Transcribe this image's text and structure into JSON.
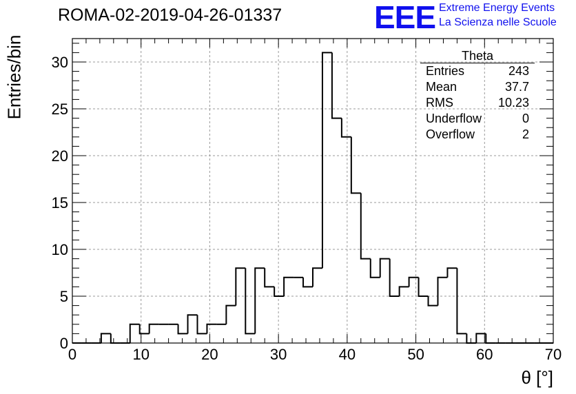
{
  "header": {
    "title": "ROMA-02-2019-04-26-01337",
    "logo_text": "EEE",
    "org_line1": "Extreme Energy Events",
    "org_line2": "La Scienza nelle Scuole"
  },
  "stats_box": {
    "name": "Theta",
    "rows": [
      {
        "label": "Entries",
        "value": "243"
      },
      {
        "label": "Mean",
        "value": "37.7"
      },
      {
        "label": "RMS",
        "value": "10.23"
      },
      {
        "label": "Underflow",
        "value": "0"
      },
      {
        "label": "Overflow",
        "value": "2"
      }
    ]
  },
  "colors": {
    "logo": "#1010ee",
    "line": "#000000",
    "grid": "#999999"
  },
  "chart_data": {
    "type": "bar",
    "style": "step-histogram",
    "title": "ROMA-02-2019-04-26-01337",
    "xlabel": "θ [°]",
    "ylabel": "Entries/bin",
    "xlim": [
      0,
      70
    ],
    "ylim": [
      0,
      32.5
    ],
    "bin_width": 1.4,
    "x_ticks": [
      0,
      10,
      20,
      30,
      40,
      50,
      60,
      70
    ],
    "y_ticks": [
      0,
      5,
      10,
      15,
      20,
      25,
      30
    ],
    "grid": true,
    "values": [
      0,
      0,
      0,
      1,
      0,
      0,
      2,
      1,
      2,
      2,
      2,
      1,
      3,
      1,
      2,
      2,
      4,
      8,
      1,
      8,
      6,
      5,
      7,
      7,
      6,
      8,
      31,
      24,
      22,
      16,
      9,
      7,
      9,
      5,
      6,
      7,
      5,
      4,
      7,
      8,
      1,
      0,
      1,
      0,
      0,
      0,
      0,
      0,
      0,
      0
    ]
  }
}
